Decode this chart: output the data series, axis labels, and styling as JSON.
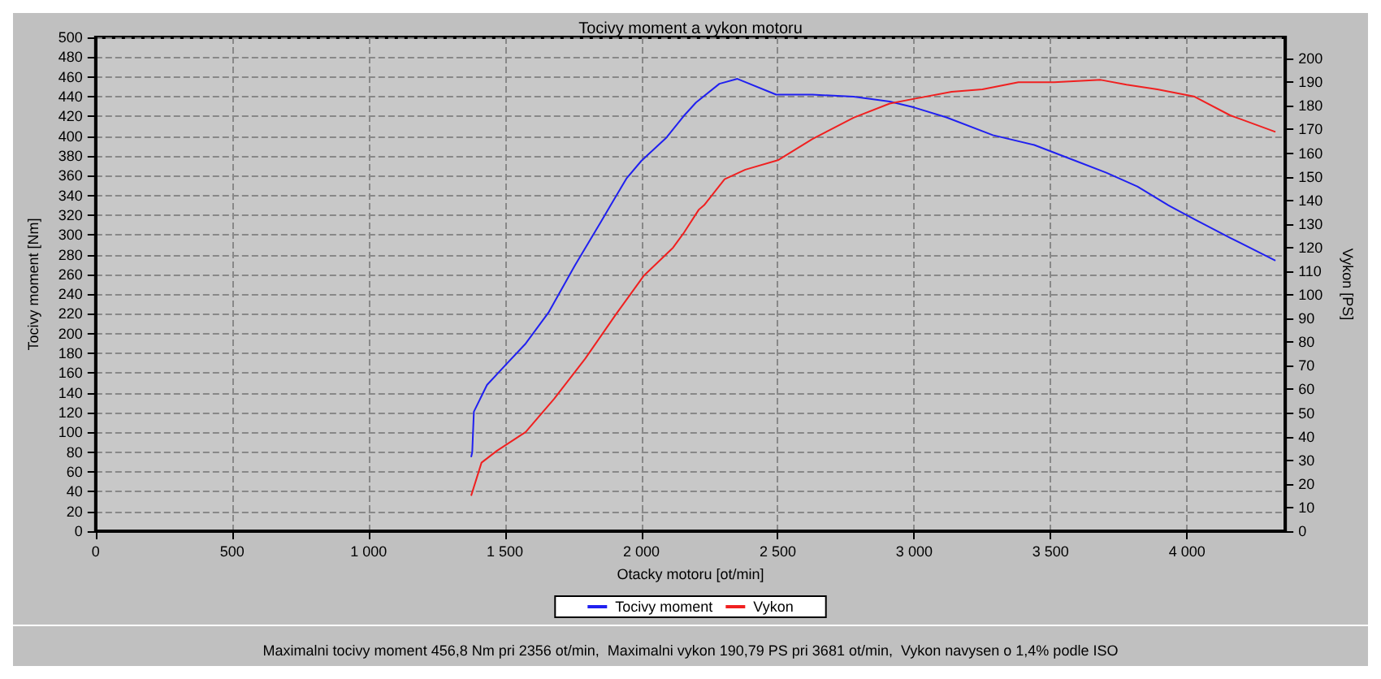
{
  "chart_data": {
    "type": "line",
    "title": "Tocivy moment a vykon motoru",
    "xlabel": "Otacky motoru [ot/min]",
    "ylabel": "Tocivy moment [Nm]",
    "y2label": "Vykon [PS]",
    "annotations": [
      "Maximalni tocivy moment 456,8 Nm pri 2356 ot/min,  Maximalni vykon 190,79 PS pri 3681 ot/min,  Vykon navysen o 1,4% podle ISO"
    ],
    "xlim": [
      0,
      4360
    ],
    "xticks": [
      0,
      500,
      {
        "value": 1000,
        "label": "1 000"
      },
      {
        "value": 1500,
        "label": "1 500"
      },
      {
        "value": 2000,
        "label": "2 000"
      },
      {
        "value": 2500,
        "label": "2 500"
      },
      {
        "value": 3000,
        "label": "3 000"
      },
      {
        "value": 3500,
        "label": "3 500"
      },
      {
        "value": 4000,
        "label": "4 000"
      }
    ],
    "ylim": [
      0,
      500
    ],
    "yticks": [
      0,
      20,
      40,
      60,
      80,
      100,
      120,
      140,
      160,
      180,
      200,
      220,
      240,
      260,
      280,
      300,
      320,
      340,
      360,
      380,
      400,
      420,
      440,
      460,
      480,
      500
    ],
    "y2lim": [
      0,
      209
    ],
    "y2ticks": [
      0,
      10,
      20,
      30,
      40,
      50,
      60,
      70,
      80,
      90,
      100,
      110,
      120,
      130,
      140,
      150,
      160,
      170,
      180,
      190,
      200
    ],
    "grid": true,
    "legend": "bottom",
    "marker": "none",
    "line_style": "solid",
    "series": [
      {
        "name": "Tocivy moment",
        "color": "#2020f0",
        "x": [
          1376,
          1380,
          1386,
          1434,
          1491,
          1576,
          1661,
          1756,
          1851,
          1945,
          2000,
          2090,
          2154,
          2200,
          2286,
          2352,
          2494,
          2627,
          2778,
          2910,
          3000,
          3118,
          3288,
          3440,
          3591,
          3704,
          3818,
          3931,
          4025,
          4158,
          4324
        ],
        "values": [
          75,
          80,
          121,
          148,
          165,
          190,
          222,
          269,
          313,
          357,
          375,
          398,
          420,
          434,
          453,
          458,
          442,
          442,
          440,
          435,
          429,
          419,
          401,
          391,
          375,
          363,
          349,
          330,
          316,
          297,
          274
        ]
      },
      {
        "name": "Vykon",
        "color": "#f02020",
        "axis": "y2",
        "x": [
          1376,
          1414,
          1470,
          1576,
          1680,
          1794,
          1908,
          2008,
          2116,
          2154,
          2210,
          2230,
          2305,
          2381,
          2500,
          2627,
          2778,
          2910,
          3000,
          3137,
          3250,
          3382,
          3513,
          3684,
          3778,
          3891,
          4025,
          4158,
          4324
        ],
        "values": [
          15,
          29,
          34,
          42,
          56,
          73,
          92,
          108,
          120,
          126,
          136,
          138,
          149,
          153,
          157,
          166,
          175,
          181,
          183,
          186,
          187,
          190,
          190,
          191,
          189,
          187,
          184,
          176,
          169
        ]
      }
    ]
  }
}
